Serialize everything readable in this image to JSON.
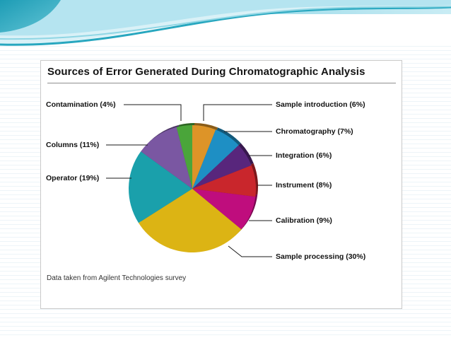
{
  "chart_data": {
    "type": "pie",
    "title": "Sources of Error Generated During Chromatographic Analysis",
    "source_note": "Data taken from Agilent Technologies survey",
    "total": 100,
    "legend": "callout-labels",
    "slices": [
      {
        "label": "Contamination",
        "pct": 4,
        "display": "Contamination (4%)",
        "color": "#4aa53a",
        "side": "left"
      },
      {
        "label": "Sample introduction",
        "pct": 6,
        "display": "Sample introduction (6%)",
        "color": "#dd9428",
        "side": "right"
      },
      {
        "label": "Chromatography",
        "pct": 7,
        "display": "Chromatography (7%)",
        "color": "#1e8fc4",
        "side": "right"
      },
      {
        "label": "Integration",
        "pct": 6,
        "display": "Integration (6%)",
        "color": "#58267c",
        "side": "right"
      },
      {
        "label": "Instrument",
        "pct": 8,
        "display": "Instrument (8%)",
        "color": "#c9262c",
        "side": "right"
      },
      {
        "label": "Calibration",
        "pct": 9,
        "display": "Calibration (9%)",
        "color": "#bf0d7d",
        "side": "right"
      },
      {
        "label": "Sample processing",
        "pct": 30,
        "display": "Sample processing (30%)",
        "color": "#dcb414",
        "side": "right"
      },
      {
        "label": "Operator",
        "pct": 19,
        "display": "Operator (19%)",
        "color": "#1aa0ab",
        "side": "left"
      },
      {
        "label": "Columns",
        "pct": 11,
        "display": "Columns (11%)",
        "color": "#7a57a2",
        "side": "left"
      }
    ]
  }
}
